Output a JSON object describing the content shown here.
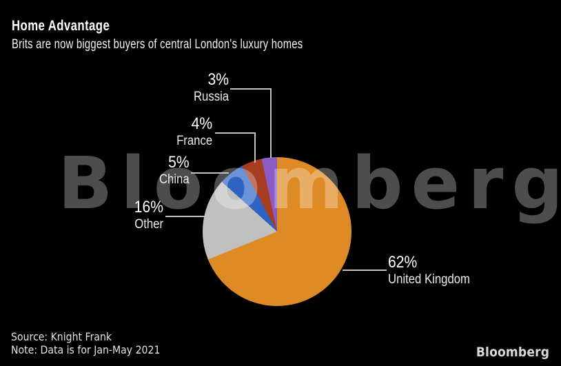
{
  "header": {
    "title": "Home Advantage",
    "subtitle": "Brits are now biggest buyers of central London's luxury homes"
  },
  "chart_data": {
    "type": "pie",
    "title": "Home Advantage",
    "subtitle": "Brits are now biggest buyers of central London's luxury homes",
    "unit": "%",
    "start_angle_deg": 0,
    "direction": "clockwise",
    "legend_position": "callouts-with-leader-lines",
    "slices": [
      {
        "label": "United Kingdom",
        "value": 62,
        "display": "62%",
        "color": "#DE8B25"
      },
      {
        "label": "Other",
        "value": 16,
        "display": "16%",
        "color": "#C0C0C0"
      },
      {
        "label": "China",
        "value": 5,
        "display": "5%",
        "color": "#2E63C3"
      },
      {
        "label": "France",
        "value": 4,
        "display": "4%",
        "color": "#A63C20"
      },
      {
        "label": "Russia",
        "value": 3,
        "display": "3%",
        "color": "#8A5CC4"
      }
    ]
  },
  "watermark": "Bloomberg",
  "footer": {
    "source": "Source: Knight Frank",
    "note": "Note: Data is for Jan-May 2021",
    "logo": "Bloomberg"
  },
  "colors": {
    "background": "#000000",
    "text": "#ffffff",
    "leader_line": "#c2c2c2",
    "watermark": "rgba(255,255,255,0.30)"
  }
}
